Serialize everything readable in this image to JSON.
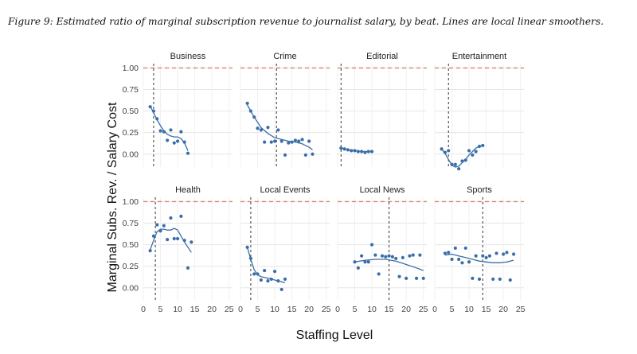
{
  "caption": "Figure 9: Estimated ratio of marginal subscription revenue to journalist salary, by beat. Lines are local linear smoothers.",
  "chart_data": {
    "type": "scatter",
    "facet_layout": "2x4",
    "xlabel": "Staffing Level",
    "ylabel": "Marginal Subs. Rev. / Salary Cost",
    "xlim": [
      0,
      26
    ],
    "ylim": [
      -0.15,
      1.05
    ],
    "x_ticks": [
      0,
      5,
      10,
      15,
      20,
      25
    ],
    "y_ticks": [
      0.0,
      0.25,
      0.5,
      0.75,
      1.0
    ],
    "y_tick_labels": [
      "0.00",
      "0.25",
      "0.50",
      "0.75",
      "1.00"
    ],
    "reference_line": {
      "y": 1.0,
      "style": "dashed",
      "color": "#d9826b"
    },
    "colors": {
      "points": "#3a6ea8",
      "smoother": "#3a6ea8",
      "reference": "#d9826b",
      "vline": "#333333",
      "grid": "#e6e6e6"
    },
    "grid": true,
    "panels": [
      {
        "name": "Business",
        "vline": 3,
        "points": [
          [
            2,
            0.55
          ],
          [
            3,
            0.5
          ],
          [
            4,
            0.41
          ],
          [
            5,
            0.27
          ],
          [
            6,
            0.26
          ],
          [
            7,
            0.16
          ],
          [
            8,
            0.28
          ],
          [
            9,
            0.13
          ],
          [
            10,
            0.15
          ],
          [
            11,
            0.26
          ],
          [
            12,
            0.14
          ],
          [
            13,
            0.01
          ]
        ],
        "smooth": [
          [
            2,
            0.56
          ],
          [
            3,
            0.48
          ],
          [
            4,
            0.4
          ],
          [
            5,
            0.33
          ],
          [
            6,
            0.27
          ],
          [
            7,
            0.23
          ],
          [
            8,
            0.21
          ],
          [
            9,
            0.2
          ],
          [
            10,
            0.2
          ],
          [
            11,
            0.18
          ],
          [
            12,
            0.13
          ],
          [
            13,
            0.04
          ]
        ]
      },
      {
        "name": "Crime",
        "vline": 10.5,
        "points": [
          [
            2,
            0.59
          ],
          [
            3,
            0.5
          ],
          [
            4,
            0.43
          ],
          [
            5,
            0.3
          ],
          [
            6,
            0.28
          ],
          [
            7,
            0.14
          ],
          [
            8,
            0.31
          ],
          [
            9,
            0.14
          ],
          [
            10,
            0.15
          ],
          [
            11,
            0.28
          ],
          [
            12,
            0.15
          ],
          [
            13,
            -0.01
          ],
          [
            14,
            0.13
          ],
          [
            15,
            0.14
          ],
          [
            16,
            0.16
          ],
          [
            17,
            0.15
          ],
          [
            18,
            0.17
          ],
          [
            19,
            -0.01
          ],
          [
            20,
            0.15
          ],
          [
            21,
            0.0
          ]
        ],
        "smooth": [
          [
            2,
            0.57
          ],
          [
            4,
            0.43
          ],
          [
            6,
            0.31
          ],
          [
            8,
            0.24
          ],
          [
            10,
            0.19
          ],
          [
            12,
            0.17
          ],
          [
            14,
            0.15
          ],
          [
            16,
            0.14
          ],
          [
            18,
            0.12
          ],
          [
            20,
            0.08
          ],
          [
            21,
            0.05
          ]
        ]
      },
      {
        "name": "Editorial",
        "vline": 1,
        "points": [
          [
            1,
            0.07
          ],
          [
            2,
            0.06
          ],
          [
            3,
            0.05
          ],
          [
            4,
            0.04
          ],
          [
            5,
            0.04
          ],
          [
            6,
            0.03
          ],
          [
            7,
            0.03
          ],
          [
            8,
            0.02
          ],
          [
            9,
            0.03
          ],
          [
            10,
            0.03
          ]
        ],
        "smooth": [
          [
            1,
            0.07
          ],
          [
            3,
            0.05
          ],
          [
            5,
            0.04
          ],
          [
            7,
            0.03
          ],
          [
            9,
            0.03
          ],
          [
            10,
            0.03
          ]
        ]
      },
      {
        "name": "Entertainment",
        "vline": 4,
        "points": [
          [
            2,
            0.06
          ],
          [
            3,
            0.02
          ],
          [
            4,
            0.04
          ],
          [
            5,
            -0.12
          ],
          [
            6,
            -0.12
          ],
          [
            7,
            -0.17
          ],
          [
            8,
            -0.08
          ],
          [
            9,
            -0.07
          ],
          [
            10,
            0.04
          ],
          [
            11,
            -0.01
          ],
          [
            12,
            0.03
          ],
          [
            13,
            0.09
          ],
          [
            14,
            0.1
          ]
        ],
        "smooth": [
          [
            2,
            0.06
          ],
          [
            3,
            0.01
          ],
          [
            4,
            -0.06
          ],
          [
            5,
            -0.13
          ],
          [
            6,
            -0.15
          ],
          [
            7,
            -0.14
          ],
          [
            8,
            -0.1
          ],
          [
            9,
            -0.06
          ],
          [
            10,
            -0.01
          ],
          [
            11,
            0.03
          ],
          [
            12,
            0.07
          ],
          [
            13,
            0.09
          ],
          [
            14,
            0.1
          ]
        ]
      },
      {
        "name": "Health",
        "vline": 3.5,
        "points": [
          [
            2,
            0.43
          ],
          [
            3,
            0.6
          ],
          [
            4,
            0.73
          ],
          [
            5,
            0.66
          ],
          [
            6,
            0.72
          ],
          [
            7,
            0.56
          ],
          [
            8,
            0.81
          ],
          [
            9,
            0.57
          ],
          [
            10,
            0.57
          ],
          [
            11,
            0.83
          ],
          [
            12,
            0.55
          ],
          [
            13,
            0.23
          ],
          [
            14,
            0.53
          ]
        ],
        "smooth": [
          [
            2,
            0.44
          ],
          [
            3,
            0.55
          ],
          [
            4,
            0.65
          ],
          [
            5,
            0.68
          ],
          [
            6,
            0.68
          ],
          [
            7,
            0.67
          ],
          [
            8,
            0.67
          ],
          [
            9,
            0.69
          ],
          [
            10,
            0.67
          ],
          [
            11,
            0.6
          ],
          [
            12,
            0.53
          ],
          [
            13,
            0.47
          ],
          [
            14,
            0.41
          ]
        ]
      },
      {
        "name": "Local Events",
        "vline": 3,
        "points": [
          [
            2,
            0.47
          ],
          [
            3,
            0.34
          ],
          [
            4,
            0.16
          ],
          [
            5,
            0.16
          ],
          [
            6,
            0.09
          ],
          [
            7,
            0.2
          ],
          [
            8,
            0.08
          ],
          [
            9,
            0.1
          ],
          [
            10,
            0.19
          ],
          [
            11,
            0.08
          ],
          [
            12,
            -0.02
          ],
          [
            13,
            0.1
          ]
        ],
        "smooth": [
          [
            2,
            0.47
          ],
          [
            3,
            0.33
          ],
          [
            4,
            0.21
          ],
          [
            5,
            0.15
          ],
          [
            6,
            0.13
          ],
          [
            7,
            0.12
          ],
          [
            8,
            0.11
          ],
          [
            9,
            0.1
          ],
          [
            10,
            0.09
          ],
          [
            11,
            0.08
          ],
          [
            12,
            0.07
          ],
          [
            13,
            0.06
          ]
        ]
      },
      {
        "name": "Local News",
        "vline": 15,
        "points": [
          [
            5,
            0.3
          ],
          [
            6,
            0.23
          ],
          [
            7,
            0.37
          ],
          [
            8,
            0.3
          ],
          [
            9,
            0.3
          ],
          [
            10,
            0.5
          ],
          [
            11,
            0.38
          ],
          [
            12,
            0.16
          ],
          [
            13,
            0.37
          ],
          [
            14,
            0.36
          ],
          [
            15,
            0.37
          ],
          [
            16,
            0.36
          ],
          [
            17,
            0.34
          ],
          [
            18,
            0.13
          ],
          [
            19,
            0.35
          ],
          [
            20,
            0.11
          ],
          [
            21,
            0.37
          ],
          [
            22,
            0.38
          ],
          [
            23,
            0.11
          ],
          [
            24,
            0.38
          ],
          [
            25,
            0.11
          ]
        ],
        "smooth": [
          [
            5,
            0.3
          ],
          [
            8,
            0.32
          ],
          [
            11,
            0.33
          ],
          [
            14,
            0.33
          ],
          [
            17,
            0.31
          ],
          [
            20,
            0.27
          ],
          [
            23,
            0.23
          ],
          [
            25,
            0.2
          ]
        ]
      },
      {
        "name": "Sports",
        "vline": 14,
        "points": [
          [
            3,
            0.4
          ],
          [
            4,
            0.41
          ],
          [
            5,
            0.33
          ],
          [
            6,
            0.46
          ],
          [
            7,
            0.33
          ],
          [
            8,
            0.29
          ],
          [
            9,
            0.46
          ],
          [
            10,
            0.3
          ],
          [
            11,
            0.11
          ],
          [
            12,
            0.37
          ],
          [
            13,
            0.1
          ],
          [
            14,
            0.37
          ],
          [
            15,
            0.35
          ],
          [
            16,
            0.37
          ],
          [
            17,
            0.1
          ],
          [
            18,
            0.4
          ],
          [
            19,
            0.1
          ],
          [
            20,
            0.39
          ],
          [
            21,
            0.41
          ],
          [
            22,
            0.09
          ],
          [
            23,
            0.39
          ]
        ],
        "smooth": [
          [
            3,
            0.38
          ],
          [
            5,
            0.39
          ],
          [
            7,
            0.37
          ],
          [
            9,
            0.35
          ],
          [
            11,
            0.33
          ],
          [
            13,
            0.31
          ],
          [
            15,
            0.3
          ],
          [
            17,
            0.29
          ],
          [
            19,
            0.29
          ],
          [
            21,
            0.3
          ],
          [
            23,
            0.32
          ]
        ]
      }
    ]
  }
}
